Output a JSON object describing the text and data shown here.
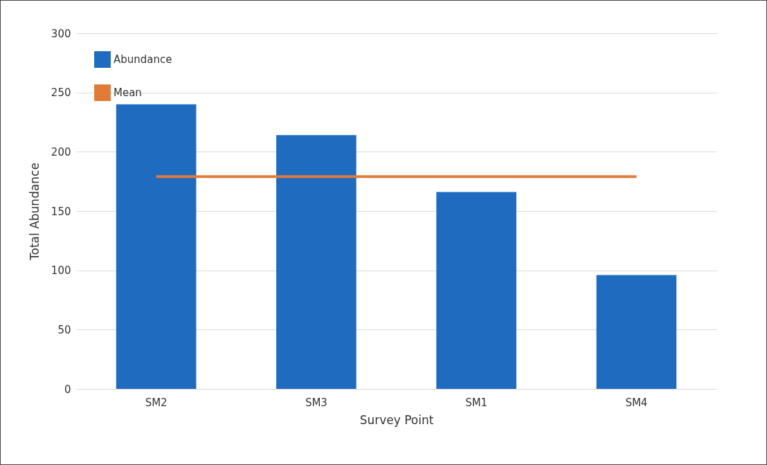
{
  "chart_data": {
    "type": "bar",
    "xlabel": "Survey Point",
    "ylabel": "Total Abundance",
    "categories": [
      "SM2",
      "SM3",
      "SM1",
      "SM4"
    ],
    "series": [
      {
        "name": "Abundance",
        "color": "#1f6bbf",
        "values": [
          240,
          214,
          166,
          96
        ]
      },
      {
        "name": "Mean",
        "type": "line",
        "color": "#e07b39",
        "values": [
          179,
          179,
          179,
          179
        ]
      }
    ],
    "ylim": [
      0,
      300
    ],
    "yticks": [
      0,
      50,
      100,
      150,
      200,
      250,
      300
    ],
    "grid": "y",
    "legend": "top left"
  }
}
